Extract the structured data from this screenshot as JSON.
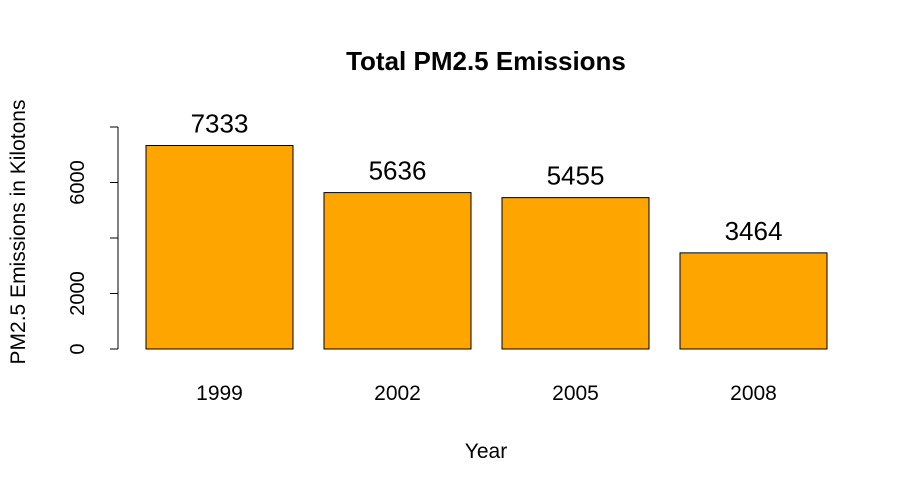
{
  "chart_data": {
    "type": "bar",
    "title": "Total PM2.5 Emissions",
    "xlabel": "Year",
    "ylabel": "PM2.5 Emissions in Kilotons",
    "categories": [
      "1999",
      "2002",
      "2005",
      "2008"
    ],
    "values": [
      7333,
      5636,
      5455,
      3464
    ],
    "data_labels": [
      "7333",
      "5636",
      "5455",
      "3464"
    ],
    "ylim": [
      0,
      8000
    ],
    "yticks": [
      0,
      2000,
      4000,
      6000,
      8000
    ],
    "ytick_labels": [
      "0",
      "2000",
      "",
      "6000",
      ""
    ],
    "grid": false,
    "legend": "none",
    "bar_color": "#FFA500",
    "bar_border_color": "#000000"
  }
}
